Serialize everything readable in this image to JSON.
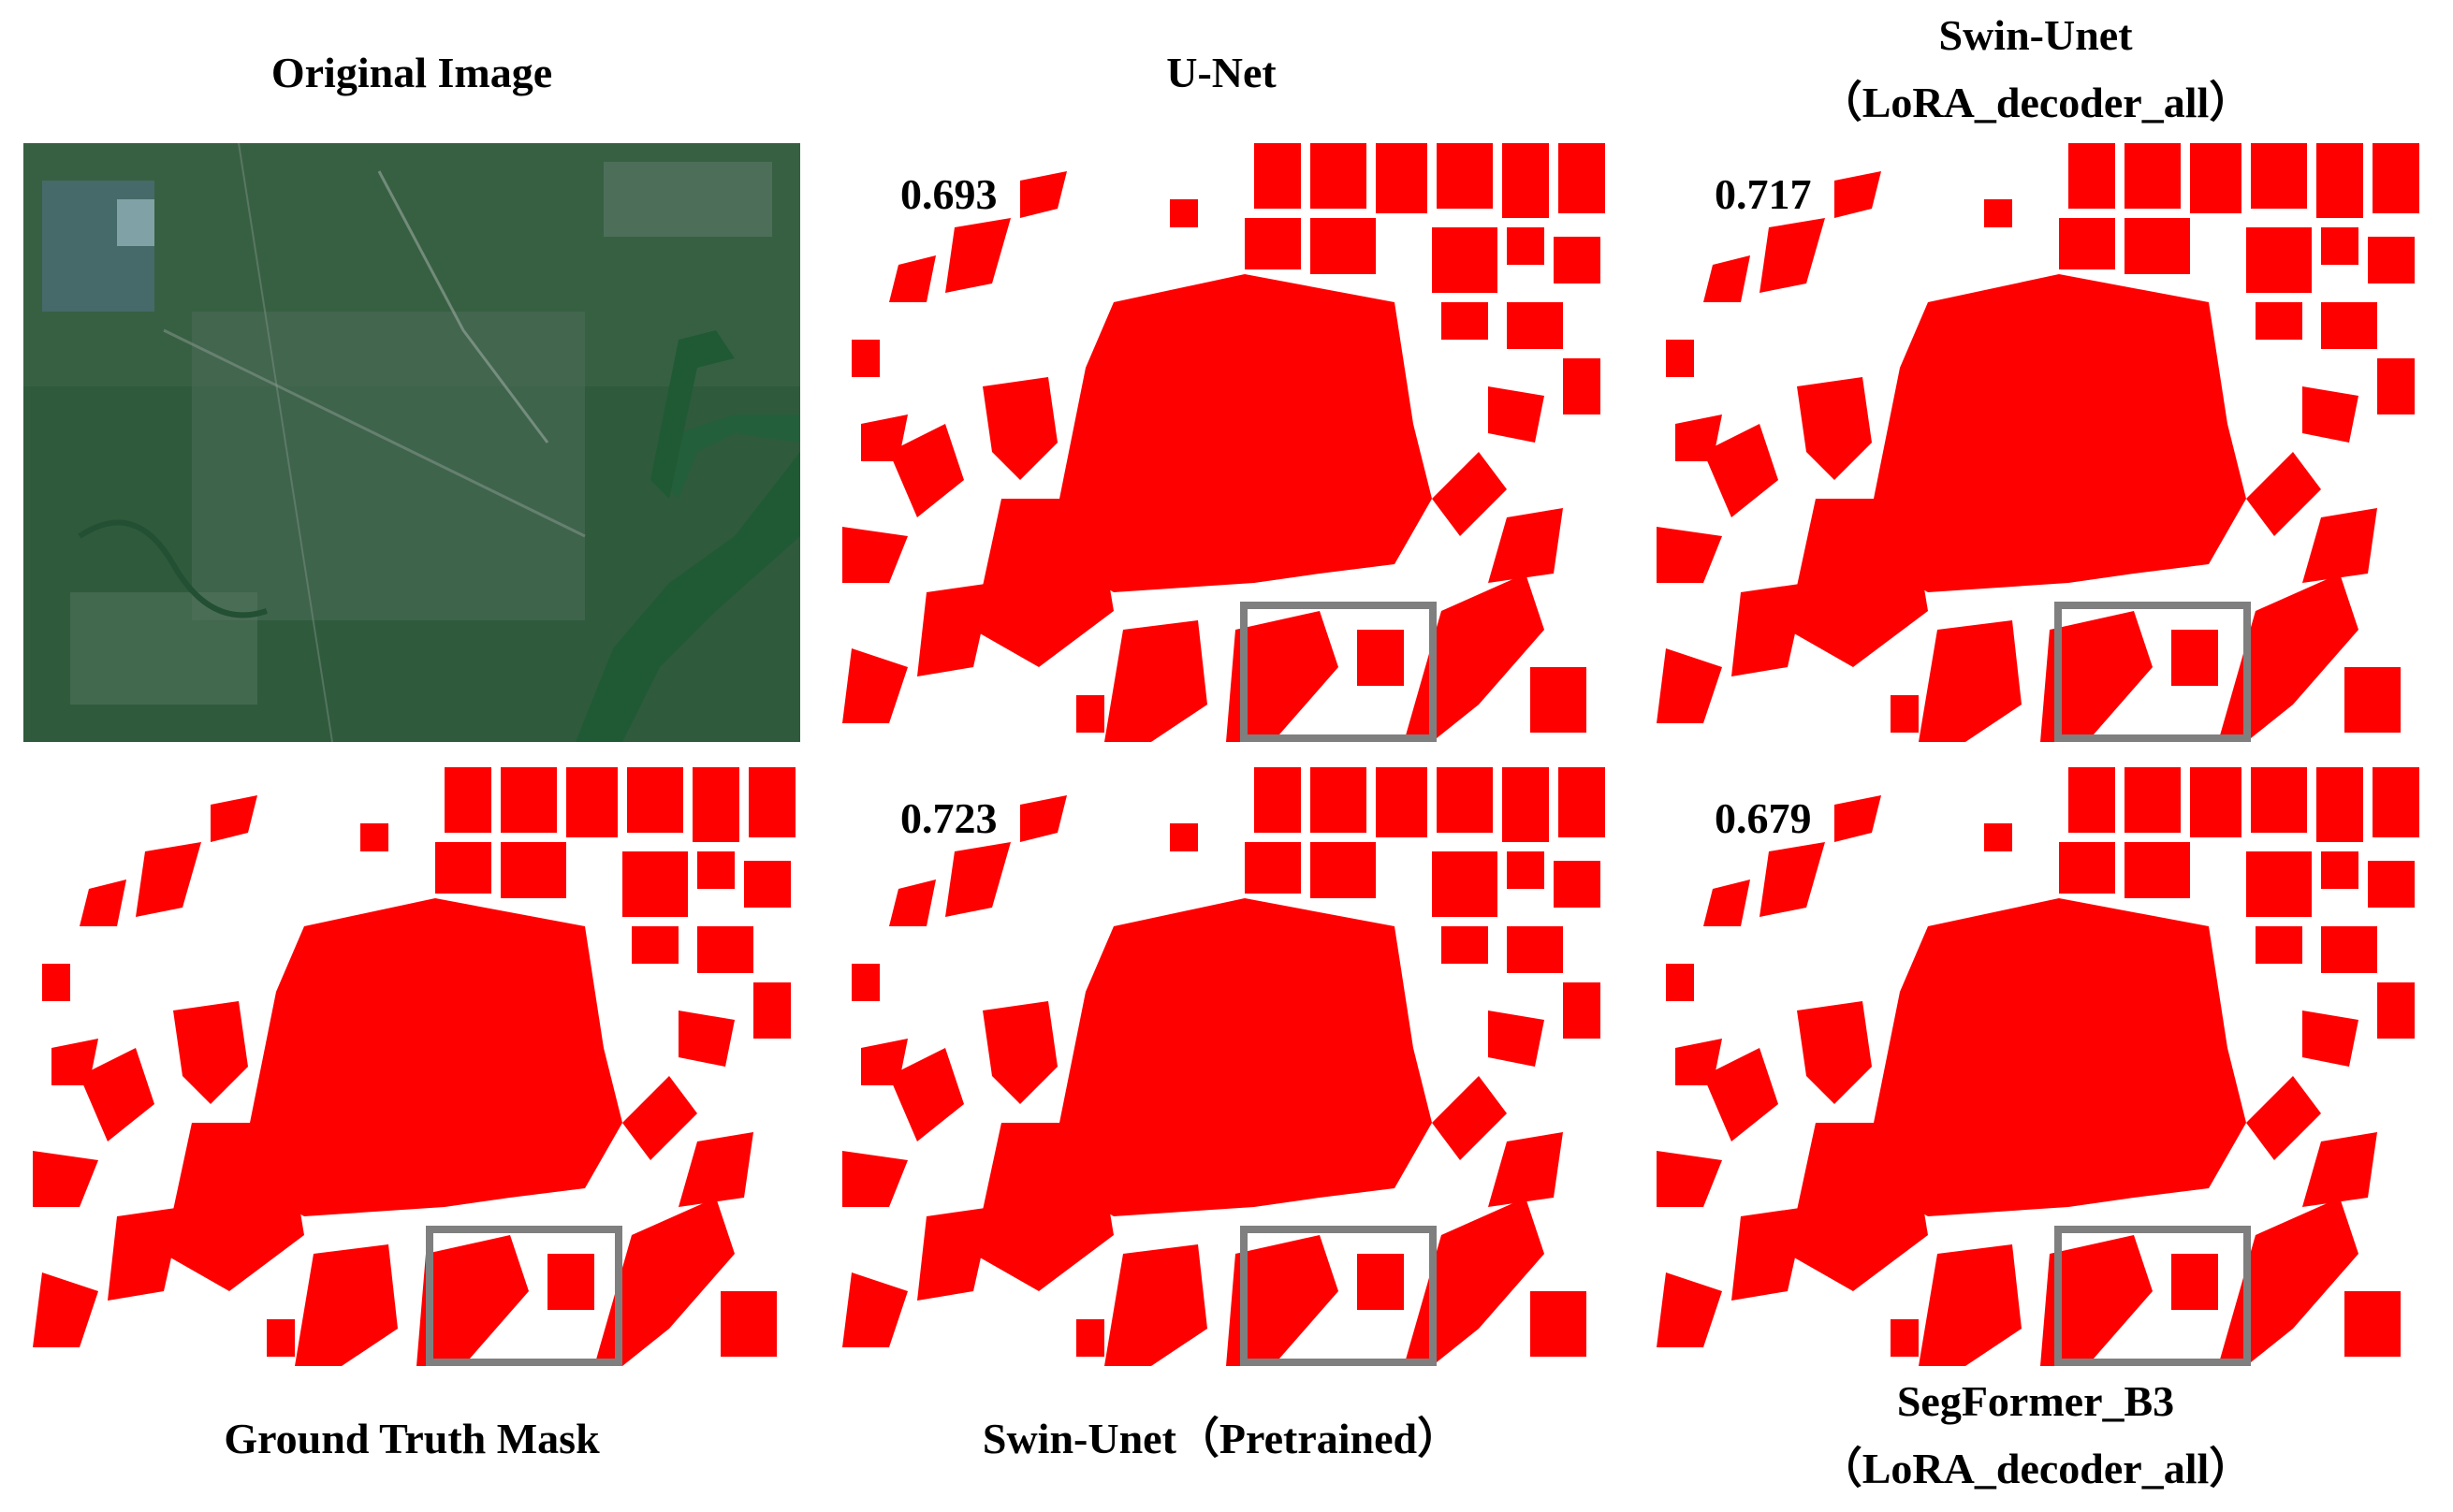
{
  "panels": {
    "original": {
      "title": "Original Image"
    },
    "unet": {
      "title": "U-Net",
      "score": "0.693"
    },
    "swin_lora": {
      "title_line1": "Swin-Unet",
      "title_line2": "（LoRA_decoder_all）",
      "score": "0.717"
    },
    "ground_truth": {
      "title": "Ground Truth Mask"
    },
    "swin_pretrained": {
      "title": "Swin-Unet（Pretrained）",
      "score": "0.723"
    },
    "segformer_lora": {
      "title_line1": "SegFormer_B3",
      "title_line2": "（LoRA_decoder_all）",
      "score": "0.679"
    }
  },
  "colors": {
    "mask_red": "#ff0000",
    "background": "#ffffff",
    "zoom_box": "#7f7f7f",
    "satellite_base": "#2f5a3c",
    "river": "#1f5a35"
  }
}
